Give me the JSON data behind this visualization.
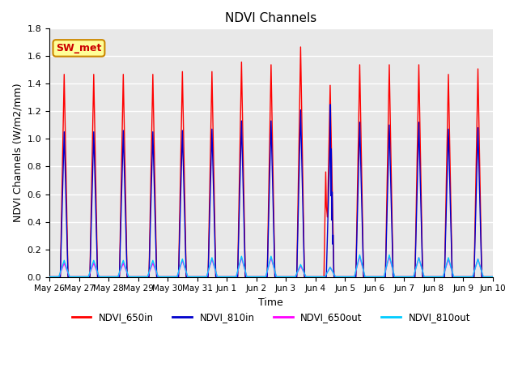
{
  "title": "NDVI Channels",
  "xlabel": "Time",
  "ylabel": "NDVI Channels (W/m2/mm)",
  "ylim": [
    0.0,
    1.8
  ],
  "background_color": "#e8e8e8",
  "grid_color": "white",
  "annotation_text": "SW_met",
  "annotation_bg": "#ffff99",
  "annotation_border": "#cc8800",
  "tick_labels": [
    "May 26",
    "May 27",
    "May 28",
    "May 29",
    "May 30",
    "May 31",
    "Jun 1",
    "Jun 2",
    "Jun 3",
    "Jun 4",
    "Jun 5",
    "Jun 6",
    "Jun 7",
    "Jun 8",
    "Jun 9",
    "Jun 10"
  ],
  "legend_labels": [
    "NDVI_650in",
    "NDVI_810in",
    "NDVI_650out",
    "NDVI_810out"
  ],
  "legend_colors": [
    "#ff0000",
    "#0000cc",
    "#ff00ff",
    "#00ccff"
  ],
  "num_days": 15,
  "peaks_650in": [
    1.48,
    1.48,
    1.48,
    1.48,
    1.5,
    1.5,
    1.57,
    1.55,
    1.68,
    1.4,
    1.55,
    1.55,
    1.55,
    1.48,
    1.52
  ],
  "peaks_810in": [
    1.06,
    1.06,
    1.07,
    1.06,
    1.07,
    1.08,
    1.14,
    1.14,
    1.22,
    1.02,
    1.13,
    1.11,
    1.13,
    1.08,
    1.09
  ],
  "peaks_650out": [
    0.1,
    0.1,
    0.1,
    0.1,
    0.12,
    0.13,
    0.14,
    0.14,
    0.08,
    0.07,
    0.15,
    0.15,
    0.14,
    0.13,
    0.13
  ],
  "peaks_810out": [
    0.12,
    0.12,
    0.12,
    0.12,
    0.13,
    0.14,
    0.15,
    0.15,
    0.09,
    0.07,
    0.16,
    0.16,
    0.14,
    0.14,
    0.13
  ],
  "special_day_index": 9
}
